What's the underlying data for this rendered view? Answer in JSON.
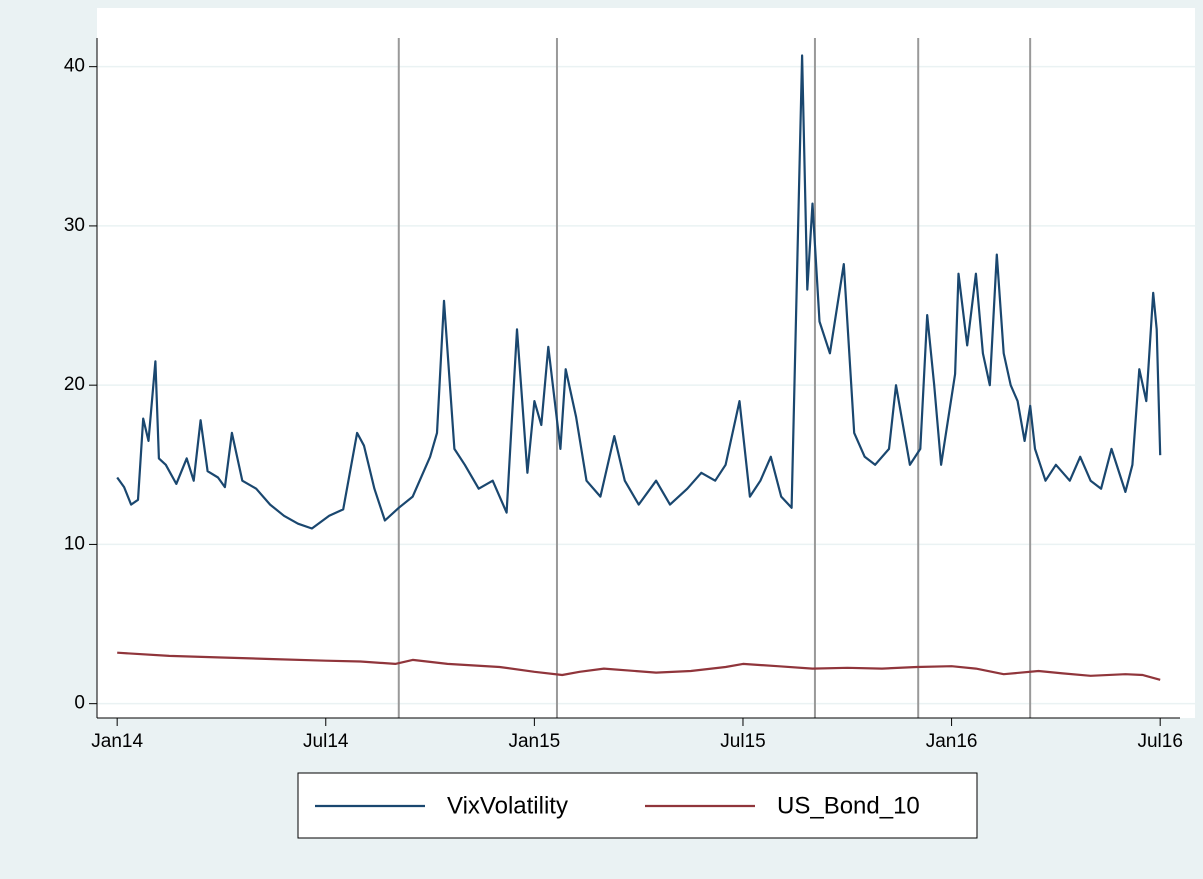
{
  "chart_data": {
    "type": "line",
    "xlim": [
      -0.58,
      30.57
    ],
    "ylim": [
      -0.9,
      41.8
    ],
    "xticks": [
      {
        "value": 0,
        "label": "Jan14"
      },
      {
        "value": 6,
        "label": "Jul14"
      },
      {
        "value": 12,
        "label": "Jan15"
      },
      {
        "value": 18,
        "label": "Jul15"
      },
      {
        "value": 24,
        "label": "Jan16"
      },
      {
        "value": 30,
        "label": "Jul16"
      }
    ],
    "yticks": [
      0,
      10,
      20,
      30,
      40
    ],
    "grid": true,
    "xlines": [
      8.1,
      12.65,
      20.07,
      23.04,
      26.26
    ],
    "legend": "bottom",
    "series": [
      {
        "name": "VixVolatility",
        "color": "#1a476f",
        "x": [
          0,
          0.2,
          0.4,
          0.6,
          0.75,
          0.9,
          1.1,
          1.2,
          1.4,
          1.7,
          2.0,
          2.2,
          2.4,
          2.6,
          2.9,
          3.1,
          3.3,
          3.6,
          4.0,
          4.4,
          4.8,
          5.2,
          5.6,
          6.1,
          6.5,
          6.9,
          7.1,
          7.4,
          7.7,
          8.1,
          8.5,
          9.0,
          9.2,
          9.4,
          9.7,
          10.0,
          10.4,
          10.8,
          11.2,
          11.5,
          11.8,
          12.0,
          12.2,
          12.4,
          12.75,
          12.9,
          13.2,
          13.5,
          13.9,
          14.3,
          14.6,
          15.0,
          15.5,
          15.9,
          16.4,
          16.8,
          17.2,
          17.5,
          17.9,
          18.2,
          18.5,
          18.8,
          19.1,
          19.4,
          19.7,
          19.85,
          20.0,
          20.2,
          20.5,
          20.9,
          21.2,
          21.5,
          21.8,
          22.2,
          22.4,
          22.8,
          23.1,
          23.3,
          23.5,
          23.7,
          24.1,
          24.2,
          24.45,
          24.7,
          24.9,
          25.1,
          25.3,
          25.5,
          25.7,
          25.9,
          26.1,
          26.26,
          26.4,
          26.7,
          27.0,
          27.4,
          27.7,
          28.0,
          28.3,
          28.6,
          29.0,
          29.2,
          29.4,
          29.6,
          29.8,
          29.9,
          30.0
        ],
        "values": [
          14.2,
          13.6,
          12.5,
          12.8,
          17.9,
          16.5,
          21.5,
          15.4,
          15.0,
          13.8,
          15.4,
          14.0,
          17.8,
          14.6,
          14.2,
          13.6,
          17.0,
          14.0,
          13.5,
          12.5,
          11.8,
          11.3,
          11.0,
          11.8,
          12.2,
          17.0,
          16.2,
          13.5,
          11.5,
          12.3,
          13.0,
          15.5,
          17.0,
          25.3,
          16.0,
          15.0,
          13.5,
          14.0,
          12.0,
          23.5,
          14.5,
          19.0,
          17.5,
          22.4,
          16.0,
          21.0,
          18.0,
          14.0,
          13.0,
          16.8,
          14.0,
          12.5,
          14.0,
          12.5,
          13.5,
          14.5,
          14.0,
          15.0,
          19.0,
          13.0,
          14.0,
          15.5,
          13.0,
          12.3,
          40.7,
          26.0,
          31.4,
          24.0,
          22.0,
          27.6,
          17.0,
          15.5,
          15.0,
          16.0,
          20.0,
          15.0,
          16.0,
          24.4,
          20.0,
          15.0,
          20.7,
          27.0,
          22.5,
          27.0,
          22.0,
          20.0,
          28.2,
          22.0,
          20.0,
          19.0,
          16.5,
          18.7,
          16.0,
          14.0,
          15.0,
          14.0,
          15.5,
          14.0,
          13.5,
          16.0,
          13.3,
          15.0,
          21.0,
          19.0,
          25.8,
          23.5,
          15.6
        ]
      },
      {
        "name": "US_Bond_10",
        "color": "#90353b",
        "x": [
          0,
          1.5,
          3,
          4.5,
          6,
          7,
          8,
          8.5,
          9.5,
          11,
          12,
          12.8,
          13.3,
          14,
          15.5,
          16.5,
          17.5,
          18,
          19,
          20,
          21,
          22,
          23,
          24,
          24.7,
          25.5,
          26.5,
          27.2,
          28,
          29,
          29.5,
          30
        ],
        "values": [
          3.2,
          3.0,
          2.9,
          2.8,
          2.7,
          2.65,
          2.5,
          2.75,
          2.5,
          2.3,
          2.0,
          1.8,
          2.0,
          2.2,
          1.95,
          2.05,
          2.3,
          2.5,
          2.35,
          2.2,
          2.25,
          2.2,
          2.3,
          2.35,
          2.2,
          1.85,
          2.05,
          1.9,
          1.75,
          1.85,
          1.8,
          1.5
        ]
      }
    ]
  }
}
